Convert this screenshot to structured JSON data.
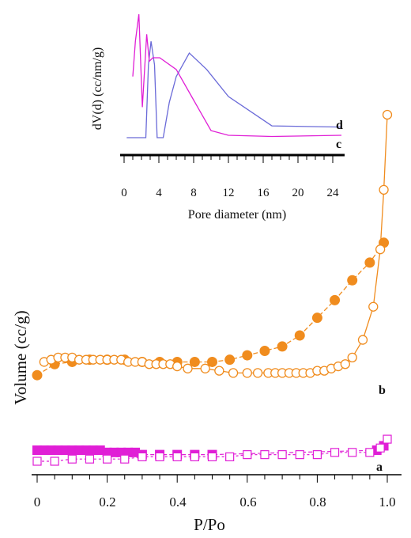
{
  "colors": {
    "isotherm_b": "#f08c1e",
    "isotherm_a": "#e01fd6",
    "inset_d": "#6a6ad8",
    "inset_c": "#e01fd6",
    "axis": "#000000"
  },
  "chart_data": [
    {
      "id": "main",
      "type": "scatter",
      "xlabel": "P/Po",
      "ylabel": "Volume (cc/g)",
      "xlim": [
        0,
        1.0
      ],
      "xticks": [
        "0",
        "0.2",
        "0.4",
        "0.6",
        "0.8",
        "1.0"
      ],
      "series": [
        {
          "name": "b",
          "color": "#f08c1e",
          "branch": "adsorption",
          "marker": "open-circle",
          "x": [
            0.02,
            0.04,
            0.06,
            0.08,
            0.1,
            0.12,
            0.14,
            0.16,
            0.18,
            0.2,
            0.22,
            0.24,
            0.26,
            0.28,
            0.3,
            0.32,
            0.34,
            0.36,
            0.38,
            0.4,
            0.43,
            0.48,
            0.52,
            0.56,
            0.6,
            0.63,
            0.66,
            0.68,
            0.7,
            0.72,
            0.74,
            0.76,
            0.78,
            0.8,
            0.82,
            0.84,
            0.86,
            0.88,
            0.9,
            0.93,
            0.96,
            0.98,
            0.99,
            1.0
          ],
          "y": [
            0.45,
            0.46,
            0.47,
            0.47,
            0.47,
            0.46,
            0.46,
            0.46,
            0.46,
            0.46,
            0.46,
            0.46,
            0.45,
            0.45,
            0.45,
            0.44,
            0.44,
            0.44,
            0.44,
            0.43,
            0.42,
            0.42,
            0.41,
            0.4,
            0.4,
            0.4,
            0.4,
            0.4,
            0.4,
            0.4,
            0.4,
            0.4,
            0.4,
            0.41,
            0.41,
            0.42,
            0.43,
            0.44,
            0.47,
            0.55,
            0.7,
            0.96,
            1.23,
            1.57
          ]
        },
        {
          "name": "b",
          "color": "#f08c1e",
          "branch": "desorption",
          "marker": "filled-circle",
          "x": [
            0.0,
            0.05,
            0.1,
            0.15,
            0.2,
            0.25,
            0.3,
            0.35,
            0.4,
            0.45,
            0.5,
            0.55,
            0.6,
            0.65,
            0.7,
            0.75,
            0.8,
            0.85,
            0.9,
            0.95,
            0.99
          ],
          "y": [
            0.39,
            0.44,
            0.45,
            0.46,
            0.46,
            0.46,
            0.45,
            0.45,
            0.45,
            0.45,
            0.45,
            0.46,
            0.48,
            0.5,
            0.52,
            0.57,
            0.65,
            0.73,
            0.82,
            0.9,
            0.99
          ]
        },
        {
          "name": "a",
          "color": "#e01fd6",
          "branch": "adsorption",
          "marker": "open-square",
          "x": [
            0.0,
            0.05,
            0.1,
            0.15,
            0.2,
            0.25,
            0.3,
            0.35,
            0.4,
            0.45,
            0.5,
            0.55,
            0.6,
            0.65,
            0.7,
            0.75,
            0.8,
            0.85,
            0.9,
            0.95,
            0.98,
            1.0
          ],
          "y": [
            0.0,
            0.0,
            0.01,
            0.01,
            0.01,
            0.01,
            0.02,
            0.02,
            0.02,
            0.02,
            0.02,
            0.02,
            0.03,
            0.03,
            0.03,
            0.03,
            0.03,
            0.04,
            0.04,
            0.04,
            0.06,
            0.1
          ]
        },
        {
          "name": "a",
          "color": "#e01fd6",
          "branch": "desorption",
          "marker": "filled-square",
          "x": [
            0.0,
            0.02,
            0.04,
            0.06,
            0.08,
            0.1,
            0.12,
            0.14,
            0.16,
            0.18,
            0.2,
            0.22,
            0.24,
            0.26,
            0.28,
            0.3,
            0.35,
            0.4,
            0.45,
            0.5,
            0.97,
            0.99
          ],
          "y": [
            0.05,
            0.05,
            0.05,
            0.05,
            0.05,
            0.05,
            0.05,
            0.05,
            0.05,
            0.05,
            0.04,
            0.04,
            0.04,
            0.04,
            0.04,
            0.03,
            0.03,
            0.03,
            0.03,
            0.03,
            0.05,
            0.07
          ]
        }
      ],
      "series_labels": [
        "b",
        "a"
      ]
    },
    {
      "id": "inset",
      "type": "line",
      "xlabel": "Pore diameter (nm)",
      "ylabel": "dV(d) (cc/nm/g)",
      "xlim": [
        0,
        25
      ],
      "xticks": [
        "0",
        "4",
        "8",
        "12",
        "16",
        "20",
        "24"
      ],
      "series": [
        {
          "name": "d",
          "color": "#6a6ad8",
          "x": [
            0.3,
            2.5,
            2.8,
            3.1,
            3.5,
            3.8,
            4.5,
            5.2,
            6.0,
            7.5,
            9.5,
            12.0,
            17.0,
            25.0
          ],
          "y": [
            0.0,
            0.0,
            0.62,
            0.82,
            0.62,
            0.0,
            0.0,
            0.3,
            0.52,
            0.72,
            0.58,
            0.35,
            0.1,
            0.09
          ]
        },
        {
          "name": "c",
          "color": "#e01fd6",
          "x": [
            1.0,
            1.3,
            1.7,
            2.1,
            2.6,
            2.9,
            3.3,
            4.1,
            6.0,
            8.0,
            10.0,
            12.0,
            17.0,
            25.0
          ],
          "y": [
            0.52,
            0.82,
            1.05,
            0.26,
            0.88,
            0.65,
            0.68,
            0.68,
            0.58,
            0.32,
            0.06,
            0.02,
            0.01,
            0.02
          ]
        }
      ],
      "series_labels": [
        "d",
        "c"
      ]
    }
  ]
}
